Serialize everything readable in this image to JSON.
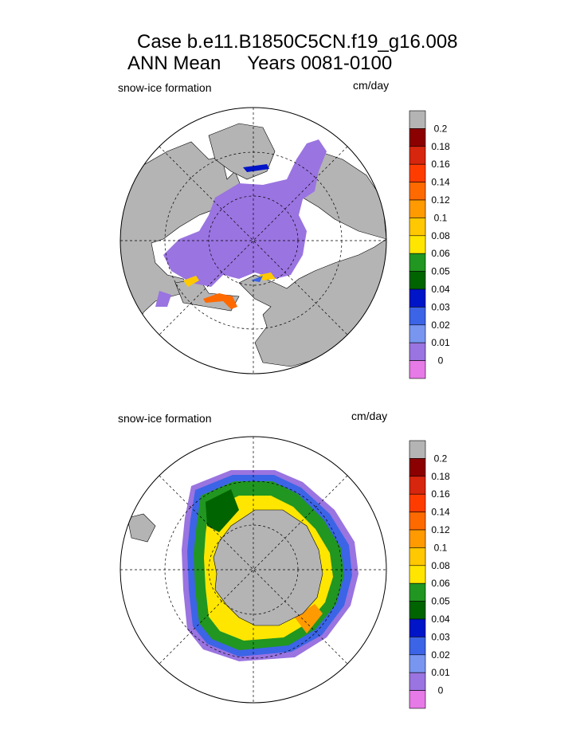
{
  "title": {
    "line1": "Case b.e11.B1850C5CN.f19_g16.008",
    "line2": "ANN Mean     Years 0081-0100"
  },
  "chart_data": [
    {
      "type": "heatmap",
      "projection": "polar-stereographic-north",
      "label": "snow-ice formation",
      "units": "cm/day",
      "colorbar": {
        "levels": [
          "0.2",
          "0.18",
          "0.16",
          "0.14",
          "0.12",
          "0.1",
          "0.08",
          "0.06",
          "0.05",
          "0.04",
          "0.03",
          "0.02",
          "0.01",
          "0"
        ],
        "colors": [
          "#b4b4b4",
          "#8b0000",
          "#d7260e",
          "#ff3c00",
          "#ff6a00",
          "#ff9a00",
          "#ffc800",
          "#ffe600",
          "#219621",
          "#006400",
          "#0014c8",
          "#3c64e6",
          "#7896f0",
          "#9a74e0",
          "#e67ae6"
        ]
      }
    },
    {
      "type": "heatmap",
      "projection": "polar-stereographic-south",
      "label": "snow-ice formation",
      "units": "cm/day",
      "colorbar": {
        "levels": [
          "0.2",
          "0.18",
          "0.16",
          "0.14",
          "0.12",
          "0.1",
          "0.08",
          "0.06",
          "0.05",
          "0.04",
          "0.03",
          "0.02",
          "0.01",
          "0"
        ],
        "colors": [
          "#b4b4b4",
          "#8b0000",
          "#d7260e",
          "#ff3c00",
          "#ff6a00",
          "#ff9a00",
          "#ffc800",
          "#ffe600",
          "#219621",
          "#006400",
          "#0014c8",
          "#3c64e6",
          "#7896f0",
          "#9a74e0",
          "#e67ae6"
        ]
      }
    }
  ]
}
